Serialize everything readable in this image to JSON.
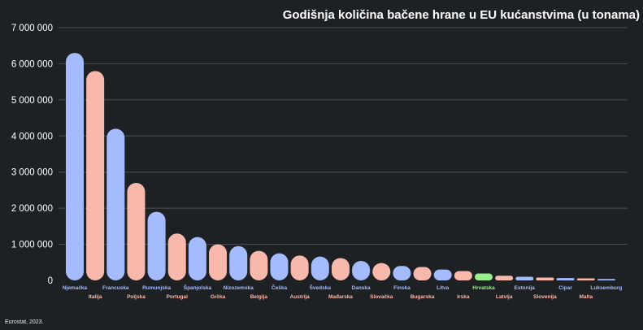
{
  "source": "Eurostat, 2023.",
  "colors": {
    "background": "#1e2124",
    "grid": "#4a4e52",
    "blue": "#a4bcff",
    "pink": "#f8b8ac",
    "green": "#9af08e",
    "axis_text": "#ffffff"
  },
  "chart_data": {
    "type": "bar",
    "title": "Godišnja količina bačene hrane u EU kućanstvima (u tonama)",
    "ylim": [
      0,
      7000000
    ],
    "yticks": [
      0,
      1000000,
      2000000,
      3000000,
      4000000,
      5000000,
      6000000,
      7000000
    ],
    "ytick_labels": [
      "0",
      "1 000 000",
      "2 000 000",
      "3 000 000",
      "4 000 000",
      "5 000 000",
      "6 000 000",
      "7 000 000"
    ],
    "grid": true,
    "legend": "none",
    "categories": [
      "Njemačka",
      "Italija",
      "Francuska",
      "Poljska",
      "Rumunjska",
      "Portugal",
      "Španjolska",
      "Grčka",
      "Nizozemska",
      "Belgija",
      "Češka",
      "Austrija",
      "Švedska",
      "Mađarska",
      "Danska",
      "Slovačka",
      "Finska",
      "Bugarska",
      "Litva",
      "Irska",
      "Hrvatska",
      "Latvija",
      "Estonija",
      "Slovenija",
      "Cipar",
      "Malta",
      "Luksemburg"
    ],
    "values": [
      6300000,
      5800000,
      4200000,
      2700000,
      1900000,
      1300000,
      1200000,
      1000000,
      950000,
      820000,
      750000,
      690000,
      660000,
      620000,
      540000,
      480000,
      400000,
      370000,
      300000,
      260000,
      190000,
      130000,
      100000,
      80000,
      65000,
      55000,
      40000
    ],
    "bar_colors": [
      "blue",
      "pink",
      "blue",
      "pink",
      "blue",
      "pink",
      "blue",
      "pink",
      "blue",
      "pink",
      "blue",
      "pink",
      "blue",
      "pink",
      "blue",
      "pink",
      "blue",
      "pink",
      "blue",
      "pink",
      "green",
      "pink",
      "blue",
      "pink",
      "blue",
      "pink",
      "blue"
    ]
  }
}
